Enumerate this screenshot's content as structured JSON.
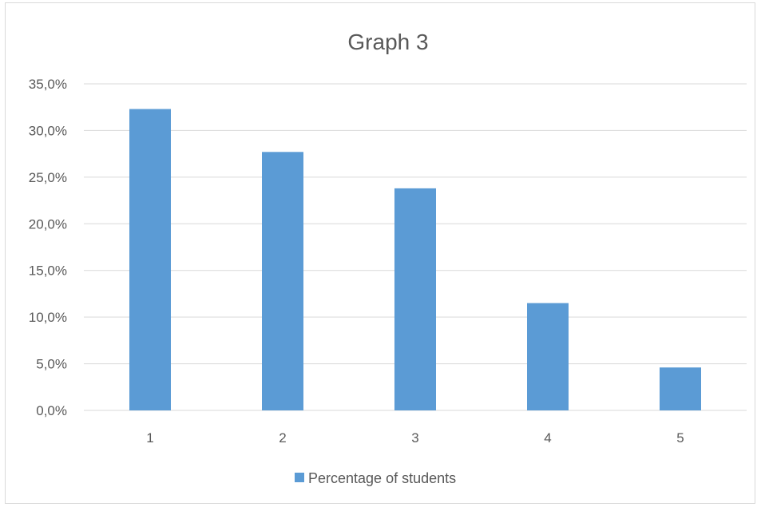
{
  "chart_data": {
    "type": "bar",
    "title": "Graph 3",
    "categories": [
      "1",
      "2",
      "3",
      "4",
      "5"
    ],
    "series": [
      {
        "name": "Percentage of students",
        "values": [
          32.3,
          27.7,
          23.8,
          11.5,
          4.6
        ]
      }
    ],
    "ylim": [
      0,
      35
    ],
    "yticks": [
      0,
      5,
      10,
      15,
      20,
      25,
      30,
      35
    ],
    "ytick_labels": [
      "0,0%",
      "5,0%",
      "10,0%",
      "15,0%",
      "20,0%",
      "25,0%",
      "30,0%",
      "35,0%"
    ],
    "xlabel": "",
    "ylabel": "",
    "grid": true,
    "legend_position": "bottom",
    "colors": {
      "bar": "#5b9bd5",
      "grid": "#d9d9d9",
      "text": "#595959"
    }
  }
}
